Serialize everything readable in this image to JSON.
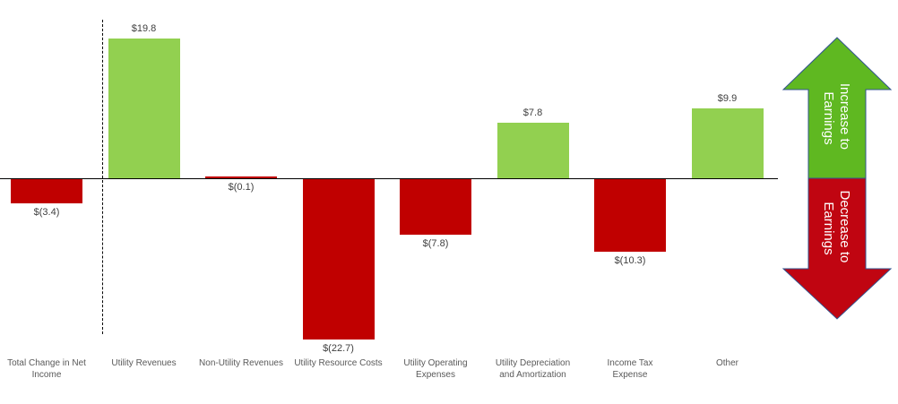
{
  "chart_data": {
    "type": "bar",
    "subtype": "waterfall-contribution",
    "title": "",
    "xlabel": "",
    "ylabel": "",
    "gridlines": false,
    "baseline": 0,
    "ylim": [
      -25,
      22
    ],
    "categories": [
      "Total Change in Net\nIncome",
      "Utility Revenues",
      "Non-Utility Revenues",
      "Utility Resource Costs",
      "Utility Operating\nExpenses",
      "Utility Depreciation\nand Amortization",
      "Income Tax\nExpense",
      "Other"
    ],
    "values": [
      -3.4,
      19.8,
      -0.1,
      -22.7,
      -7.8,
      7.8,
      -10.3,
      9.9
    ],
    "value_labels": [
      "$(3.4)",
      "$19.8",
      "$(0.1)",
      "$(22.7)",
      "$(7.8)",
      "$7.8",
      "$(10.3)",
      "$9.9"
    ],
    "positive_color": "#92D050",
    "negative_color": "#C00000",
    "separator_after_index": 0
  },
  "legend": {
    "increase": {
      "lines": [
        "Increase to",
        "Earnings"
      ],
      "fill": "#5FB821"
    },
    "decrease": {
      "lines": [
        "Decrease to",
        "Earnings"
      ],
      "fill": "#C00511"
    },
    "outline_color": "#31538F",
    "text_color": "#ffffff"
  }
}
